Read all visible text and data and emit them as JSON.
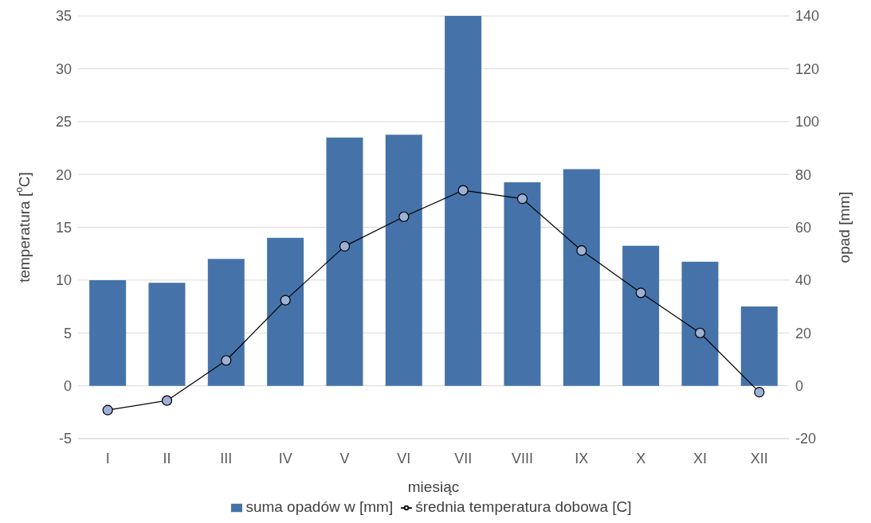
{
  "chart_data": {
    "type": "bar",
    "xlabel": "miesiąc",
    "ylabel": "temperatura [$^{o}$C]",
    "y2label": "opad [mm]",
    "categories": [
      "I",
      "II",
      "III",
      "IV",
      "V",
      "VI",
      "VII",
      "VIII",
      "IX",
      "X",
      "XI",
      "XII"
    ],
    "series": [
      {
        "name": "suma opadów w [mm]",
        "axis": "y2",
        "color": "#4573a9",
        "values": [
          40,
          39,
          48,
          56,
          94,
          95,
          140,
          77,
          82,
          53,
          47,
          30
        ]
      },
      {
        "name": "średnia temperatura dobowa [C]",
        "type": "line",
        "color": "#9db0d5",
        "values": [
          -2.3,
          -1.4,
          2.4,
          8.1,
          13.2,
          16.0,
          18.5,
          17.7,
          12.8,
          8.8,
          5.0,
          -0.6
        ]
      }
    ],
    "ylim": [
      -5,
      35
    ],
    "yticks": [
      -5,
      0,
      5,
      10,
      15,
      20,
      25,
      30,
      35
    ],
    "y2lim": [
      -20,
      140
    ],
    "y2ticks": [
      -20,
      0,
      20,
      40,
      60,
      80,
      100,
      120,
      140
    ],
    "grid": "y",
    "legend": "bottom",
    "marker": "circle",
    "line_style": "solid"
  }
}
